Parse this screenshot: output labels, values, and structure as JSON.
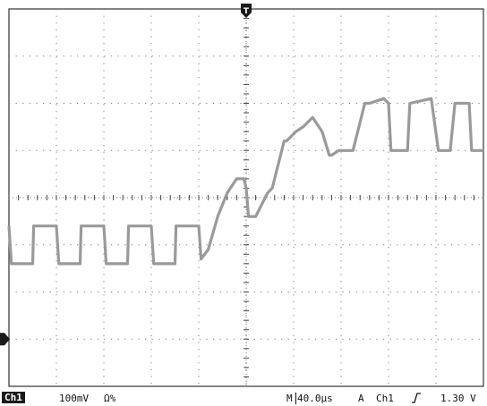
{
  "scope": {
    "channel_badge": "Ch1",
    "volts_per_div": "100mV",
    "coupling_symbol": "Ω%",
    "timebase_prefix": "M",
    "time_per_div": "40.0µs",
    "trigger_mode": "A",
    "trigger_source": "Ch1",
    "trigger_slope_icon": "rising-edge-icon",
    "trigger_level": "1.30 V",
    "markers": {
      "trigger_position_icon": "trigger-position-marker-icon",
      "ground_reference_icon": "ground-reference-marker-icon",
      "trigger_position_label": "T"
    },
    "colors": {
      "trace": "#9a9a9a",
      "grid": "#7a7a7a",
      "background": "#ffffff",
      "badge": "#1a1a1a"
    }
  },
  "chart_data": {
    "type": "line",
    "xlabel": "",
    "ylabel": "",
    "grid": true,
    "xlim": [
      0,
      10
    ],
    "ylim": [
      -4,
      4
    ],
    "series": [
      {
        "values_note_free": true,
        "x": [
          0,
          0.05,
          0.5,
          0.52,
          1.0,
          1.05,
          1.5,
          1.52,
          2.0,
          2.05,
          2.5,
          2.52,
          3.0,
          3.05,
          3.5,
          3.52,
          4.0,
          4.05,
          4.2,
          4.4,
          4.6,
          4.8,
          4.95,
          5.0,
          5.05,
          5.2,
          5.45,
          5.55,
          5.8,
          5.85,
          6.05,
          6.2,
          6.4,
          6.6,
          6.75,
          6.8,
          6.95,
          7.0,
          7.25,
          7.5,
          7.6,
          7.9,
          8.0,
          8.05,
          8.4,
          8.45,
          8.9,
          9.05,
          9.3,
          9.4,
          9.7,
          9.75,
          10.0
        ],
        "y": [
          -0.6,
          -1.4,
          -1.4,
          -0.6,
          -0.6,
          -1.4,
          -1.4,
          -0.6,
          -0.6,
          -1.4,
          -1.4,
          -0.6,
          -0.6,
          -1.4,
          -1.4,
          -0.6,
          -0.6,
          -1.3,
          -1.1,
          -0.4,
          0.1,
          0.4,
          0.4,
          0.2,
          -0.4,
          -0.4,
          0.1,
          0.2,
          1.2,
          1.2,
          1.4,
          1.5,
          1.7,
          1.4,
          0.9,
          0.9,
          1.0,
          1.0,
          1.0,
          2.0,
          2.0,
          2.1,
          2.0,
          1.0,
          1.0,
          2.0,
          2.1,
          1.0,
          1.0,
          2.0,
          2.0,
          1.0,
          1.0
        ]
      }
    ]
  }
}
